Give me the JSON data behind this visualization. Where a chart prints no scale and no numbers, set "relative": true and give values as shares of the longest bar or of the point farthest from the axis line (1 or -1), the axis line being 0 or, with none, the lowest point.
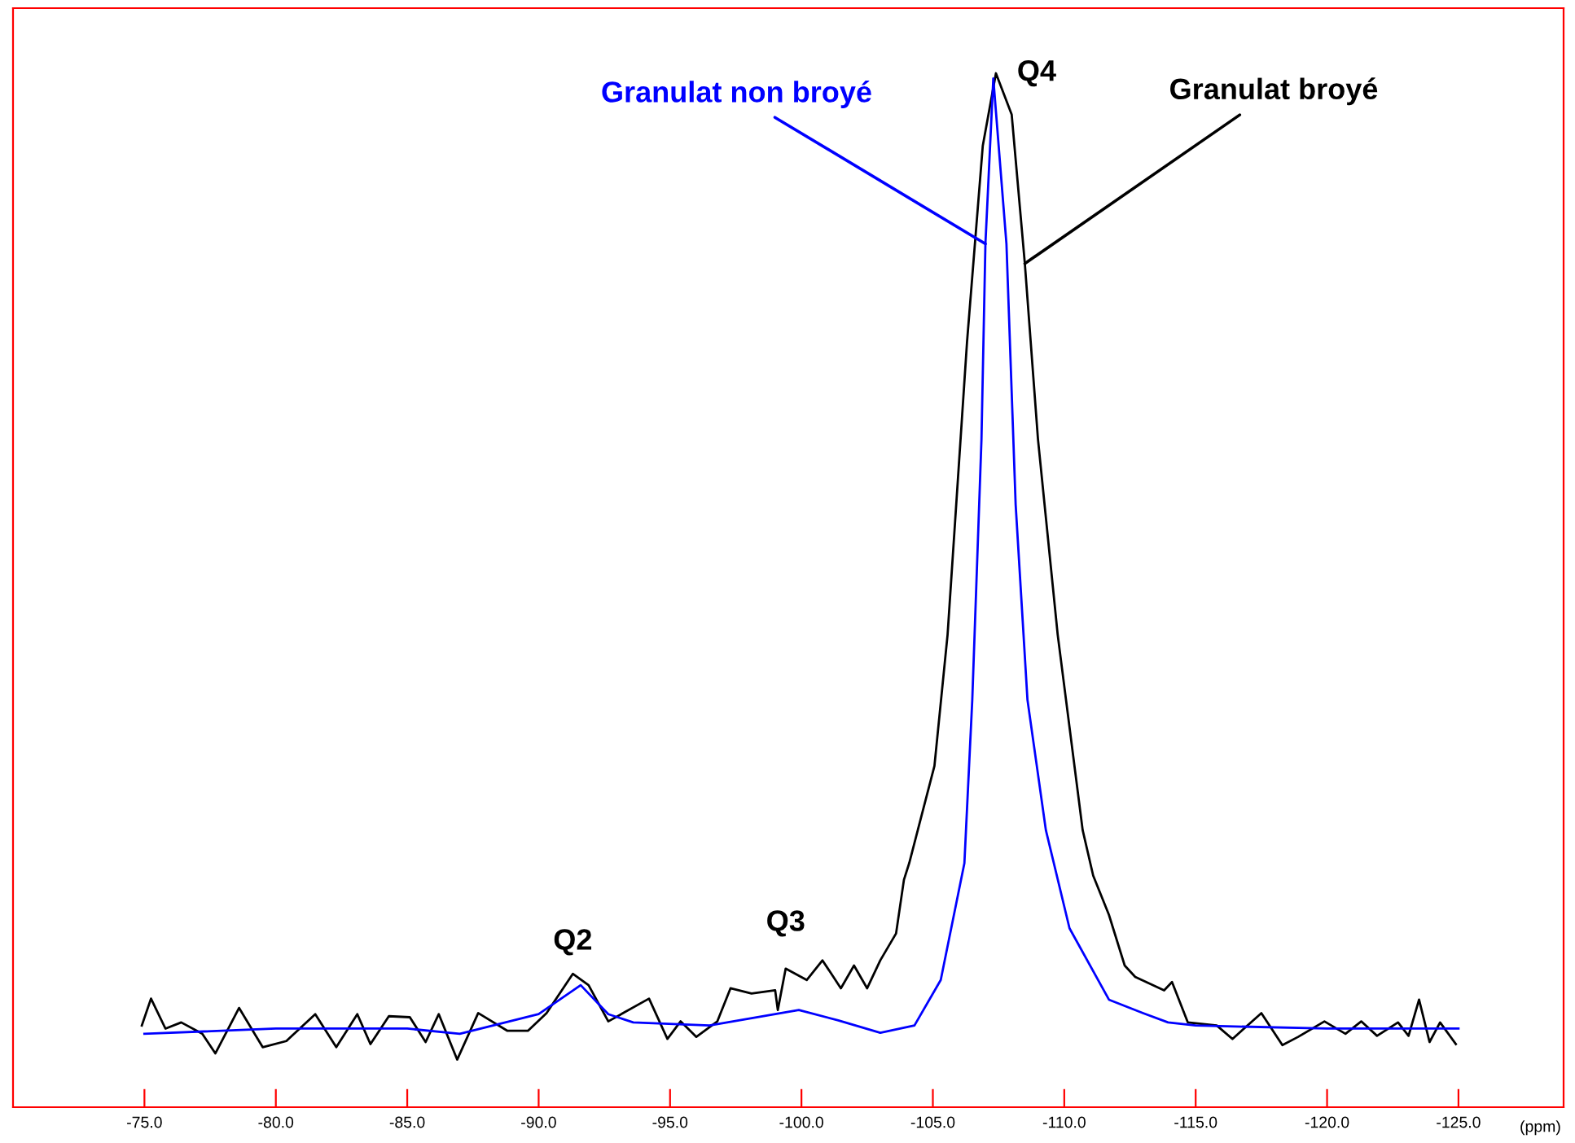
{
  "chart_data": {
    "type": "line",
    "relative": true,
    "xlabel": "(ppm)",
    "xlim": [
      -70,
      -129
    ],
    "xticks": [
      {
        "value": -75,
        "label": "-75.0"
      },
      {
        "value": -80,
        "label": "-80.0"
      },
      {
        "value": -85,
        "label": "-85.0"
      },
      {
        "value": -90,
        "label": "-90.0"
      },
      {
        "value": -95,
        "label": "-95.0"
      },
      {
        "value": -100,
        "label": "-100.0"
      },
      {
        "value": -105,
        "label": "-105.0"
      },
      {
        "value": -110,
        "label": "-110.0"
      },
      {
        "value": -115,
        "label": "-115.0"
      },
      {
        "value": -120,
        "label": "-120.0"
      },
      {
        "value": -125,
        "label": "-125.0"
      }
    ],
    "tick_labels": "x",
    "grid": false,
    "legend": false,
    "marker": "none",
    "line_style": "solid",
    "series": [
      {
        "name": "Granulat broyé",
        "color": "#000000",
        "x": [
          -74.9,
          -75.25,
          -75.8,
          -76.4,
          -77.2,
          -77.7,
          -78.6,
          -79.5,
          -80.4,
          -81.5,
          -82.3,
          -83.1,
          -83.6,
          -84.3,
          -85.1,
          -85.7,
          -86.2,
          -86.9,
          -87.7,
          -88.8,
          -89.6,
          -90.3,
          -91.3,
          -91.9,
          -92.65,
          -94.2,
          -94.9,
          -95.4,
          -96.0,
          -96.8,
          -97.3,
          -98.1,
          -99.0,
          -99.1,
          -99.4,
          -100.2,
          -100.8,
          -101.5,
          -102.0,
          -102.5,
          -103.0,
          -103.6,
          -103.9,
          -104.1,
          -105.06,
          -105.56,
          -106.3,
          -106.9,
          -107.4,
          -108.0,
          -108.5,
          -109.0,
          -109.75,
          -110.7,
          -111.1,
          -111.7,
          -112.3,
          -112.7,
          -113.8,
          -114.1,
          -114.7,
          -115.8,
          -116.4,
          -117.5,
          -118.3,
          -118.9,
          -119.9,
          -120.7,
          -121.3,
          -121.9,
          -122.7,
          -123.1,
          -123.5,
          -123.9,
          -124.3,
          -124.9
        ],
        "values": [
          0.079,
          0.105,
          0.076,
          0.082,
          0.071,
          0.052,
          0.096,
          0.058,
          0.064,
          0.09,
          0.058,
          0.09,
          0.061,
          0.088,
          0.087,
          0.063,
          0.09,
          0.046,
          0.091,
          0.074,
          0.074,
          0.091,
          0.129,
          0.118,
          0.083,
          0.105,
          0.066,
          0.083,
          0.068,
          0.083,
          0.115,
          0.11,
          0.113,
          0.094,
          0.134,
          0.123,
          0.142,
          0.115,
          0.137,
          0.115,
          0.142,
          0.168,
          0.22,
          0.236,
          0.33,
          0.457,
          0.74,
          0.93,
          1.0,
          0.96,
          0.816,
          0.646,
          0.457,
          0.268,
          0.224,
          0.186,
          0.137,
          0.126,
          0.113,
          0.121,
          0.082,
          0.079,
          0.066,
          0.091,
          0.06,
          0.068,
          0.083,
          0.071,
          0.083,
          0.069,
          0.082,
          0.069,
          0.104,
          0.063,
          0.082,
          0.061
        ]
      },
      {
        "name": "Granulat non broyé",
        "color": "#0000ff",
        "x": [
          -75.0,
          -80.0,
          -85.0,
          -87.0,
          -90.0,
          -91.6,
          -92.65,
          -93.6,
          -96.5,
          -99.9,
          -101.4,
          -103.0,
          -104.3,
          -105.3,
          -106.2,
          -106.5,
          -106.85,
          -107.0,
          -107.3,
          -107.8,
          -108.15,
          -108.6,
          -109.3,
          -110.2,
          -111.7,
          -113.0,
          -113.95,
          -115.0,
          -120.0,
          -125.0
        ],
        "values": [
          0.071,
          0.076,
          0.076,
          0.071,
          0.09,
          0.118,
          0.09,
          0.082,
          0.079,
          0.094,
          0.084,
          0.072,
          0.079,
          0.123,
          0.236,
          0.394,
          0.646,
          0.835,
          0.995,
          0.835,
          0.583,
          0.394,
          0.268,
          0.173,
          0.104,
          0.091,
          0.082,
          0.079,
          0.076,
          0.076
        ]
      }
    ],
    "annotations": [
      {
        "text": "Q2",
        "x": -91.3,
        "y": 0.129
      },
      {
        "text": "Q3",
        "x": -99.4,
        "y": 0.134
      },
      {
        "text": "Q4",
        "x": -107.4,
        "y": 1.0
      }
    ]
  }
}
